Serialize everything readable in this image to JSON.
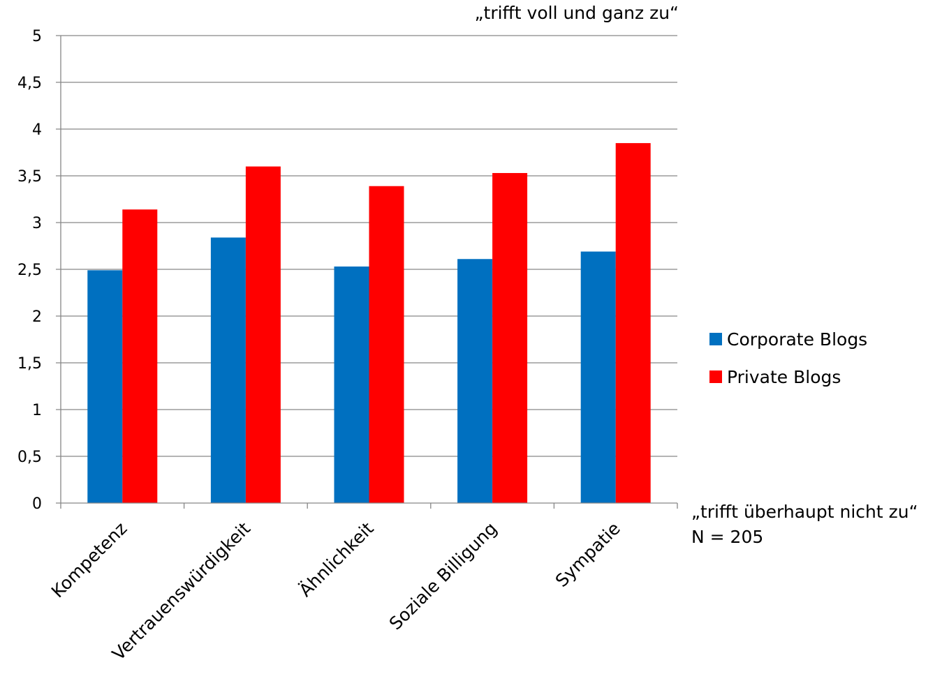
{
  "chart_data": {
    "type": "bar",
    "categories": [
      "Kompetenz",
      "Vertrauenswürdigkeit",
      "Ähnlichkeit",
      "Soziale Billigung",
      "Sympatie"
    ],
    "series": [
      {
        "name": "Corporate Blogs",
        "values": [
          2.49,
          2.84,
          2.53,
          2.61,
          2.69
        ],
        "color": "#0070C0"
      },
      {
        "name": "Private Blogs",
        "values": [
          3.14,
          3.6,
          3.39,
          3.53,
          3.85
        ],
        "color": "#FF0000"
      }
    ],
    "y_ticks": [
      "0",
      "0,5",
      "1",
      "1,5",
      "2",
      "2,5",
      "3",
      "3,5",
      "4",
      "4,5",
      "5"
    ],
    "ylim": [
      0,
      5
    ],
    "grid": true,
    "legend_position": "right",
    "annotation_top": "„trifft voll und ganz zu“",
    "annotation_bottom": "„trifft überhaupt nicht zu“",
    "n_label": "N = 205"
  }
}
